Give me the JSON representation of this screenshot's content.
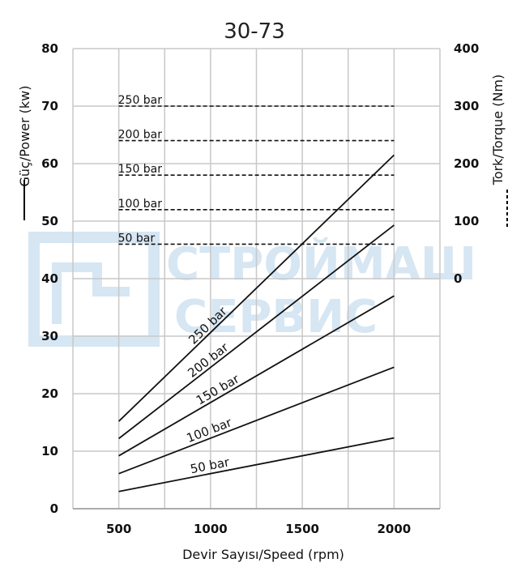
{
  "chart_data": {
    "type": "line",
    "title": "30-73",
    "xlabel": "Devir Sayısı/Speed (rpm)",
    "ylabel_left": "Güç/Power (kw)",
    "ylabel_right": "Tork/Torque (Nm)",
    "xlim": [
      250,
      2250
    ],
    "x_ticks": [
      500,
      1000,
      1500,
      2000
    ],
    "ylim_left": [
      0,
      80
    ],
    "y_ticks_left": [
      0,
      10,
      20,
      30,
      40,
      50,
      60,
      70,
      80
    ],
    "ylim_right": [
      0,
      400
    ],
    "y_ticks_right": [
      0,
      100,
      200,
      300,
      400
    ],
    "grid": true,
    "power_series": [
      {
        "name": "250 bar",
        "x": [
          500,
          2000
        ],
        "values": [
          15.2,
          61.5
        ]
      },
      {
        "name": "200 bar",
        "x": [
          500,
          2000
        ],
        "values": [
          12.2,
          49.3
        ]
      },
      {
        "name": "150 bar",
        "x": [
          500,
          2000
        ],
        "values": [
          9.2,
          37.0
        ]
      },
      {
        "name": "100 bar",
        "x": [
          500,
          2000
        ],
        "values": [
          6.1,
          24.6
        ]
      },
      {
        "name": "50 bar",
        "x": [
          500,
          2000
        ],
        "values": [
          3.0,
          12.3
        ]
      }
    ],
    "torque_series": [
      {
        "name": "250 bar",
        "x": [
          500,
          2000
        ],
        "value": 300
      },
      {
        "name": "200 bar",
        "x": [
          500,
          2000
        ],
        "value": 240
      },
      {
        "name": "150 bar",
        "x": [
          500,
          2000
        ],
        "value": 180
      },
      {
        "name": "100 bar",
        "x": [
          500,
          2000
        ],
        "value": 120
      },
      {
        "name": "50 bar",
        "x": [
          500,
          2000
        ],
        "value": 60
      }
    ]
  },
  "watermark": {
    "line1": "СТРОЙМАШ",
    "line2": "СЕРВИС",
    "color": "#d6e6f3"
  }
}
